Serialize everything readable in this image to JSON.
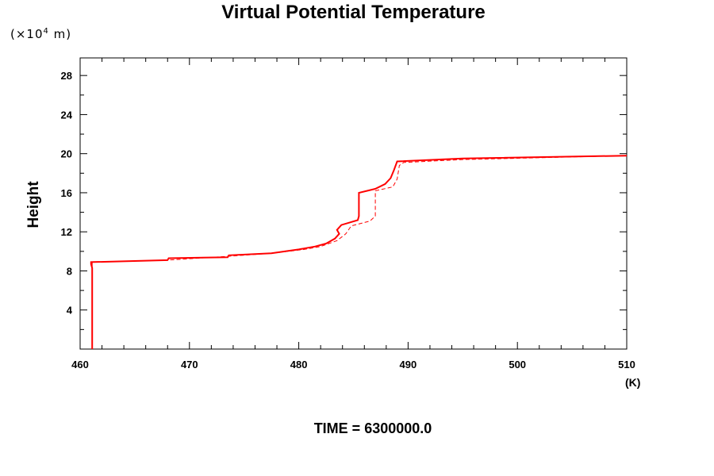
{
  "chart_data": {
    "type": "line",
    "title": "Virtual Potential Temperature",
    "unit_label": "(×10",
    "unit_exp": "4",
    "unit_suffix": " m)",
    "xlabel": "(K)",
    "ylabel": "Height",
    "footer": "TIME = 6300000.0",
    "xlim": [
      460,
      510
    ],
    "ylim": [
      0,
      29.8
    ],
    "xticks": [
      460,
      470,
      480,
      490,
      500,
      510
    ],
    "yticks": [
      4,
      8,
      12,
      16,
      20,
      24,
      28
    ],
    "grid": false,
    "color": "#ff0000",
    "series": [
      {
        "style": "solid",
        "points": [
          [
            461.1,
            0
          ],
          [
            461.1,
            8.3
          ],
          [
            461.0,
            8.7
          ],
          [
            461.0,
            8.9
          ],
          [
            468.0,
            9.1
          ],
          [
            468.1,
            9.3
          ],
          [
            473.5,
            9.4
          ],
          [
            473.6,
            9.6
          ],
          [
            477.5,
            9.8
          ],
          [
            480.0,
            10.2
          ],
          [
            481.5,
            10.5
          ],
          [
            482.5,
            10.8
          ],
          [
            483.3,
            11.3
          ],
          [
            483.7,
            11.8
          ],
          [
            483.5,
            12.2
          ],
          [
            483.9,
            12.7
          ],
          [
            485.4,
            13.2
          ],
          [
            485.5,
            13.6
          ],
          [
            485.5,
            16.0
          ],
          [
            487.0,
            16.4
          ],
          [
            487.9,
            16.9
          ],
          [
            488.4,
            17.5
          ],
          [
            488.7,
            18.3
          ],
          [
            489.0,
            19.2
          ],
          [
            495.0,
            19.5
          ],
          [
            510,
            19.8
          ]
        ]
      },
      {
        "style": "dashed",
        "points": [
          [
            461.1,
            0
          ],
          [
            461.1,
            8.9
          ],
          [
            468.0,
            9.1
          ],
          [
            473.6,
            9.5
          ],
          [
            477.5,
            9.8
          ],
          [
            480.5,
            10.2
          ],
          [
            482.0,
            10.5
          ],
          [
            483.5,
            11.1
          ],
          [
            484.3,
            11.8
          ],
          [
            484.8,
            12.6
          ],
          [
            486.5,
            13.1
          ],
          [
            487.0,
            13.6
          ],
          [
            487.0,
            16.2
          ],
          [
            488.6,
            16.6
          ],
          [
            489.0,
            17.4
          ],
          [
            489.2,
            18.8
          ],
          [
            489.6,
            19.1
          ],
          [
            495.0,
            19.4
          ],
          [
            510,
            19.8
          ]
        ]
      }
    ]
  }
}
